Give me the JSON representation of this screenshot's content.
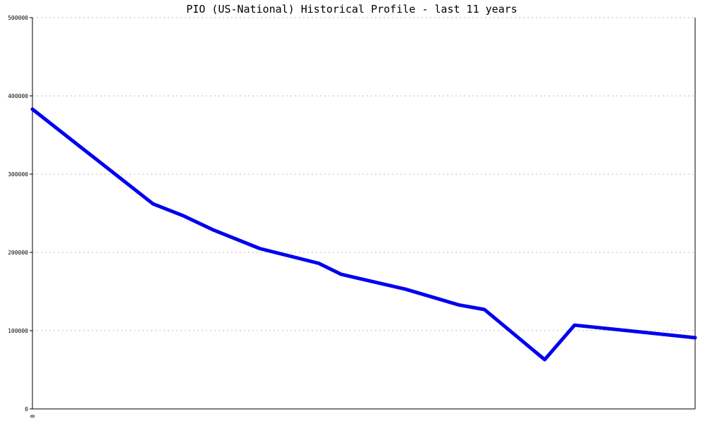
{
  "chart_data": {
    "type": "line",
    "title": "PIO (US-National) Historical Profile - last 11 years",
    "xlabel": "",
    "ylabel": "",
    "x_tick_labels": [
      "0"
    ],
    "y_ticks": [
      0,
      100000,
      200000,
      300000,
      400000,
      500000
    ],
    "y_tick_labels": [
      "0",
      "100000",
      "200000",
      "300000",
      "400000",
      "500000"
    ],
    "ylim": [
      0,
      500000
    ],
    "grid": true,
    "colors": {
      "line": "#0000ee",
      "grid": "#bbbbbb",
      "axis": "#000000"
    },
    "series": [
      {
        "values": [
          383000,
          262000,
          247000,
          229000,
          205000,
          186000,
          172000,
          153000,
          133000,
          127000,
          63000,
          107000,
          91000
        ],
        "x_fraction": [
          0.0,
          0.182,
          0.227,
          0.272,
          0.343,
          0.432,
          0.466,
          0.563,
          0.643,
          0.682,
          0.773,
          0.818,
          1.0
        ]
      }
    ]
  }
}
